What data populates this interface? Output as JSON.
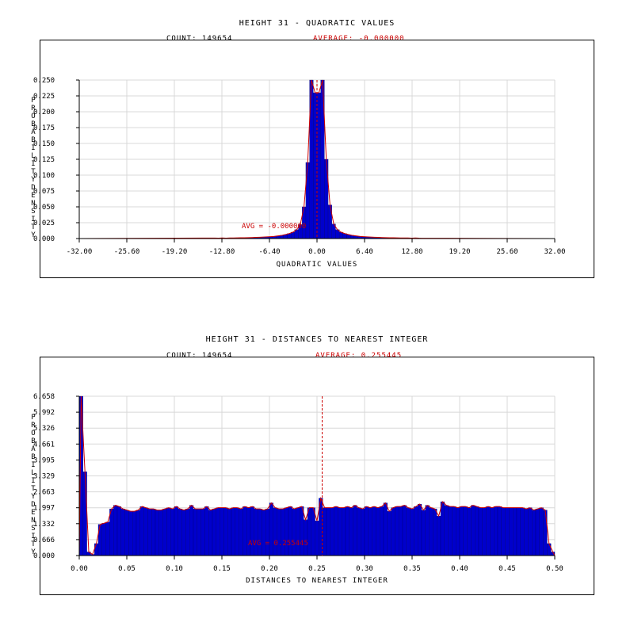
{
  "chart_data": [
    {
      "type": "bar",
      "title": "HEIGHT 31 - QUADRATIC VALUES",
      "count_label": "COUNT: 149654",
      "average_label": "AVERAGE: -0.000000",
      "avg_annotation": "AVG = -0.000000",
      "xlabel": "QUADRATIC VALUES",
      "ylabel": "PROBABILITY DENSITY",
      "xlim": [
        -32,
        32
      ],
      "ylim": [
        0,
        0.25
      ],
      "x_ticks": [
        "-32.00",
        "-25.60",
        "-19.20",
        "-12.80",
        "-6.40",
        "0.00",
        "6.40",
        "12.80",
        "19.20",
        "25.60",
        "32.00"
      ],
      "y_ticks": [
        "0.000",
        "0.025",
        "0.050",
        "0.075",
        "0.100",
        "0.125",
        "0.150",
        "0.175",
        "0.200",
        "0.225",
        "0.250"
      ],
      "average": 0.0,
      "bin_width": 0.5,
      "x": [
        -14.0,
        -13.5,
        -13.0,
        -12.5,
        -12.0,
        -11.5,
        -11.0,
        -10.5,
        -10.0,
        -9.5,
        -9.0,
        -8.5,
        -8.0,
        -7.5,
        -7.0,
        -6.5,
        -6.0,
        -5.5,
        -5.0,
        -4.5,
        -4.0,
        -3.5,
        -3.0,
        -2.5,
        -2.0,
        -1.5,
        -1.0,
        -0.5,
        0.0,
        0.5,
        1.0,
        1.5,
        2.0,
        2.5,
        3.0,
        3.5,
        4.0,
        4.5,
        5.0,
        5.5,
        6.0,
        6.5,
        7.0,
        7.5,
        8.0,
        8.5,
        9.0,
        9.5,
        10.0,
        10.5,
        11.0,
        11.5,
        12.0,
        12.5,
        13.0,
        13.5
      ],
      "values": [
        0.0008,
        0.0006,
        0.0009,
        0.0007,
        0.001,
        0.0009,
        0.0011,
        0.0012,
        0.0013,
        0.0014,
        0.0016,
        0.0018,
        0.002,
        0.0023,
        0.0026,
        0.003,
        0.0035,
        0.0042,
        0.005,
        0.0062,
        0.0078,
        0.01,
        0.014,
        0.022,
        0.05,
        0.12,
        0.25,
        0.23,
        0.23,
        0.25,
        0.125,
        0.053,
        0.023,
        0.014,
        0.01,
        0.0078,
        0.0062,
        0.005,
        0.0042,
        0.0035,
        0.003,
        0.0026,
        0.0023,
        0.002,
        0.0018,
        0.0016,
        0.0014,
        0.0013,
        0.0012,
        0.0011,
        0.001,
        0.0009,
        0.001,
        0.0007,
        0.0009,
        0.0006
      ],
      "bar_color": "#0000cc",
      "line_color": "#cc0000",
      "grid": true
    },
    {
      "type": "bar",
      "title": "HEIGHT 31 - DISTANCES TO NEAREST INTEGER",
      "count_label": "COUNT: 149654",
      "average_label": "AVERAGE: 0.255445",
      "avg_annotation": "AVG = 0.255445",
      "xlabel": "DISTANCES TO NEAREST INTEGER",
      "ylabel": "PROBABILITY DENSITY",
      "xlim": [
        0,
        0.5
      ],
      "ylim": [
        0,
        6.658
      ],
      "x_ticks": [
        "0.00",
        "0.05",
        "0.10",
        "0.15",
        "0.20",
        "0.25",
        "0.30",
        "0.35",
        "0.40",
        "0.45",
        "0.50"
      ],
      "y_ticks": [
        "0.000",
        "0.666",
        "1.332",
        "1.997",
        "2.663",
        "3.329",
        "3.995",
        "4.661",
        "5.326",
        "5.992",
        "6.658"
      ],
      "average": 0.255445,
      "bin_width": 0.004,
      "x": [
        0.0,
        0.004,
        0.008,
        0.012,
        0.016,
        0.02,
        0.024,
        0.028,
        0.032,
        0.036,
        0.04,
        0.044,
        0.048,
        0.052,
        0.056,
        0.06,
        0.064,
        0.068,
        0.072,
        0.076,
        0.08,
        0.084,
        0.088,
        0.092,
        0.096,
        0.1,
        0.104,
        0.108,
        0.112,
        0.116,
        0.12,
        0.124,
        0.128,
        0.132,
        0.136,
        0.14,
        0.144,
        0.148,
        0.152,
        0.156,
        0.16,
        0.164,
        0.168,
        0.172,
        0.176,
        0.18,
        0.184,
        0.188,
        0.192,
        0.196,
        0.2,
        0.204,
        0.208,
        0.212,
        0.216,
        0.22,
        0.224,
        0.228,
        0.232,
        0.236,
        0.24,
        0.244,
        0.248,
        0.252,
        0.256,
        0.26,
        0.264,
        0.268,
        0.272,
        0.276,
        0.28,
        0.284,
        0.288,
        0.292,
        0.296,
        0.3,
        0.304,
        0.308,
        0.312,
        0.316,
        0.32,
        0.324,
        0.328,
        0.332,
        0.336,
        0.34,
        0.344,
        0.348,
        0.352,
        0.356,
        0.36,
        0.364,
        0.368,
        0.372,
        0.376,
        0.38,
        0.384,
        0.388,
        0.392,
        0.396,
        0.4,
        0.404,
        0.408,
        0.412,
        0.416,
        0.42,
        0.424,
        0.428,
        0.432,
        0.436,
        0.44,
        0.444,
        0.448,
        0.452,
        0.456,
        0.46,
        0.464,
        0.468,
        0.472,
        0.476,
        0.48,
        0.484,
        0.488,
        0.492,
        0.496
      ],
      "values": [
        6.658,
        3.5,
        0.15,
        0.05,
        0.5,
        1.3,
        1.35,
        1.4,
        1.95,
        2.1,
        2.05,
        1.95,
        1.9,
        1.85,
        1.85,
        1.9,
        2.05,
        2.0,
        1.95,
        1.95,
        1.9,
        1.9,
        1.95,
        2.0,
        1.95,
        2.05,
        1.95,
        1.9,
        1.95,
        2.1,
        1.95,
        1.95,
        1.95,
        2.05,
        1.9,
        1.95,
        2.0,
        2.0,
        2.0,
        1.95,
        2.0,
        2.0,
        1.95,
        2.05,
        2.0,
        2.05,
        1.95,
        1.95,
        1.9,
        1.95,
        2.2,
        2.0,
        1.95,
        1.95,
        2.0,
        2.05,
        1.95,
        2.0,
        2.05,
        1.5,
        2.0,
        2.0,
        1.45,
        2.4,
        2.0,
        2.0,
        2.0,
        2.05,
        2.0,
        2.0,
        2.05,
        2.0,
        2.1,
        2.0,
        1.95,
        2.05,
        2.0,
        2.05,
        2.0,
        2.05,
        2.2,
        1.85,
        2.0,
        2.05,
        2.05,
        2.1,
        2.0,
        1.95,
        2.05,
        2.15,
        1.9,
        2.1,
        2.0,
        1.95,
        1.65,
        2.25,
        2.1,
        2.05,
        2.05,
        2.0,
        2.05,
        2.05,
        2.0,
        2.1,
        2.05,
        2.0,
        2.0,
        2.05,
        2.0,
        2.05,
        2.05,
        2.0,
        2.0,
        2.0,
        2.0,
        2.0,
        2.0,
        1.95,
        2.0,
        1.9,
        1.95,
        2.0,
        1.9,
        0.5,
        0.15
      ],
      "bar_color": "#0000cc",
      "line_color": "#cc0000",
      "grid": true
    }
  ]
}
